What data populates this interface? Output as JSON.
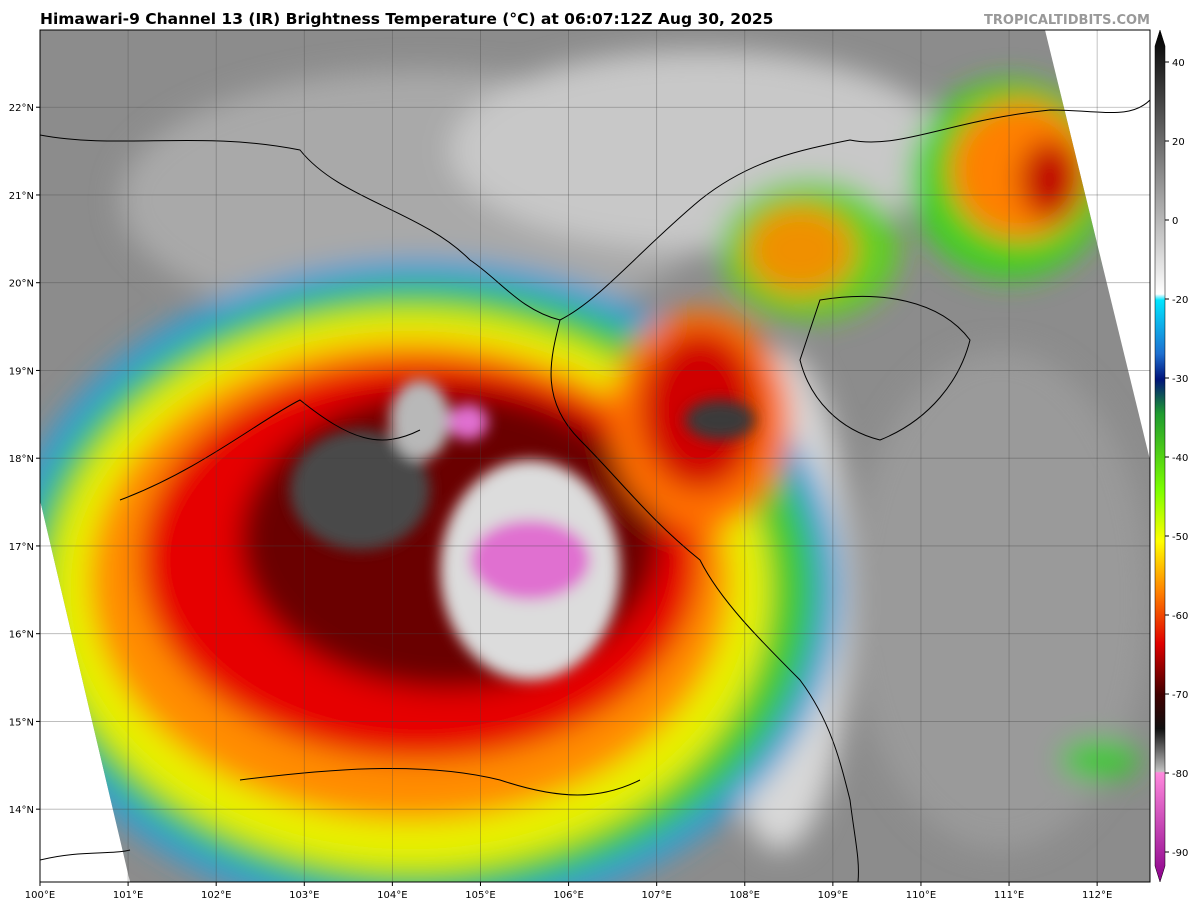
{
  "title": "Himawari-9 Channel 13 (IR) Brightness Temperature (°C) at 06:07:12Z Aug 30, 2025",
  "watermark": "TROPICALTIDBITS.COM",
  "map": {
    "xlim": [
      100,
      112.6
    ],
    "ylim": [
      13.17,
      22.88
    ],
    "lon_ticks": [
      {
        "value": 100,
        "label": "100°E"
      },
      {
        "value": 101,
        "label": "101°E"
      },
      {
        "value": 102,
        "label": "102°E"
      },
      {
        "value": 103,
        "label": "103°E"
      },
      {
        "value": 104,
        "label": "104°E"
      },
      {
        "value": 105,
        "label": "105°E"
      },
      {
        "value": 106,
        "label": "106°E"
      },
      {
        "value": 107,
        "label": "107°E"
      },
      {
        "value": 108,
        "label": "108°E"
      },
      {
        "value": 109,
        "label": "109°E"
      },
      {
        "value": 110,
        "label": "110°E"
      },
      {
        "value": 111,
        "label": "111°E"
      },
      {
        "value": 112,
        "label": "112°E"
      }
    ],
    "lat_ticks": [
      {
        "value": 22,
        "label": "22°N"
      },
      {
        "value": 21,
        "label": "21°N"
      },
      {
        "value": 20,
        "label": "20°N"
      },
      {
        "value": 19,
        "label": "19°N"
      },
      {
        "value": 18,
        "label": "18°N"
      },
      {
        "value": 17,
        "label": "17°N"
      },
      {
        "value": 16,
        "label": "16°N"
      },
      {
        "value": 15,
        "label": "15°N"
      },
      {
        "value": 14,
        "label": "14°N"
      }
    ]
  },
  "colorbar": {
    "ticks": [
      40,
      20,
      0,
      -20,
      -30,
      -40,
      -50,
      -60,
      -70,
      -80,
      -90
    ]
  }
}
